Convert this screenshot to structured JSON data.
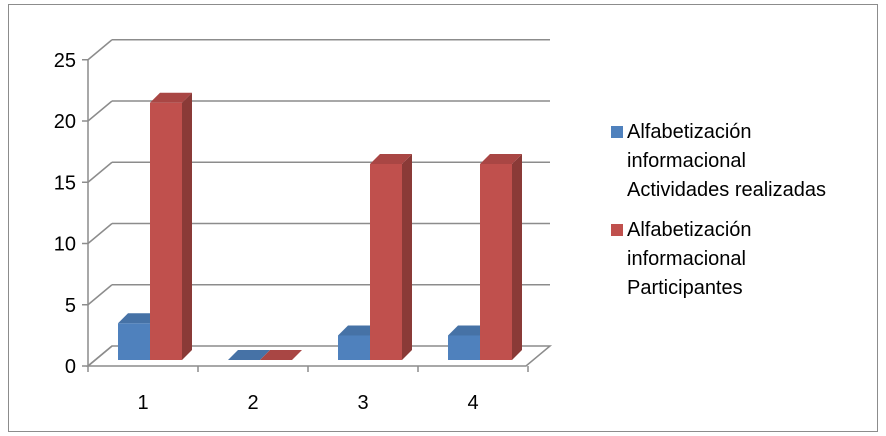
{
  "chart_data": {
    "type": "bar",
    "categories": [
      "1",
      "2",
      "3",
      "4"
    ],
    "series": [
      {
        "name": [
          "Alfabetización",
          "informacional",
          "Actividades realizadas"
        ],
        "values": [
          3,
          0,
          2,
          2
        ],
        "color": "#4f81bd"
      },
      {
        "name": [
          "Alfabetización",
          "informacional",
          "Participantes"
        ],
        "values": [
          21,
          0,
          16,
          16
        ],
        "color": "#c0504d"
      }
    ],
    "yticks": [
      "0",
      "5",
      "10",
      "15",
      "20",
      "25"
    ],
    "ylim": [
      0,
      25
    ],
    "grid": true,
    "legend_position": "right",
    "style": "3d-clustered-column"
  }
}
